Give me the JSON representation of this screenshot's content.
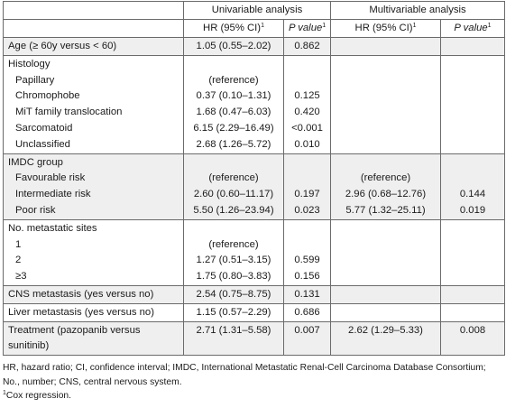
{
  "header": {
    "univariable": "Univariable analysis",
    "multivariable": "Multivariable analysis",
    "hr_ci": "HR (95% CI)",
    "p_value": "P value",
    "sup": "1"
  },
  "age": {
    "label": "Age (≥ 60y versus < 60)",
    "uni_hr": "1.05 (0.55–2.02)",
    "uni_p": "0.862"
  },
  "histology": {
    "label": "Histology",
    "rows": [
      {
        "label": "Papillary",
        "uni_hr": "(reference)",
        "uni_p": ""
      },
      {
        "label": "Chromophobe",
        "uni_hr": "0.37 (0.10–1.31)",
        "uni_p": "0.125"
      },
      {
        "label": "MiT family translocation",
        "uni_hr": "1.68 (0.47–6.03)",
        "uni_p": "0.420"
      },
      {
        "label": "Sarcomatoid",
        "uni_hr": "6.15 (2.29–16.49)",
        "uni_p": "<0.001"
      },
      {
        "label": "Unclassified",
        "uni_hr": "2.68 (1.26–5.72)",
        "uni_p": "0.010"
      }
    ]
  },
  "imdc": {
    "label": "IMDC group",
    "rows": [
      {
        "label": "Favourable risk",
        "uni_hr": "(reference)",
        "uni_p": "",
        "multi_hr": "(reference)",
        "multi_p": ""
      },
      {
        "label": "Intermediate risk",
        "uni_hr": "2.60 (0.60–11.17)",
        "uni_p": "0.197",
        "multi_hr": "2.96 (0.68–12.76)",
        "multi_p": "0.144"
      },
      {
        "label": "Poor risk",
        "uni_hr": "5.50 (1.26–23.94)",
        "uni_p": "0.023",
        "multi_hr": "5.77 (1.32–25.11)",
        "multi_p": "0.019"
      }
    ]
  },
  "sites": {
    "label": "No. metastatic sites",
    "rows": [
      {
        "label": "1",
        "uni_hr": "(reference)",
        "uni_p": ""
      },
      {
        "label": "2",
        "uni_hr": "1.27 (0.51–3.15)",
        "uni_p": "0.599"
      },
      {
        "label": "≥3",
        "uni_hr": "1.75 (0.80–3.83)",
        "uni_p": "0.156"
      }
    ]
  },
  "cns": {
    "label": "CNS metastasis (yes versus no)",
    "uni_hr": "2.54 (0.75–8.75)",
    "uni_p": "0.131"
  },
  "liver": {
    "label": "Liver metastasis (yes versus no)",
    "uni_hr": "1.15 (0.57–2.29)",
    "uni_p": "0.686"
  },
  "treatment": {
    "label": "Treatment (pazopanib versus sunitinib)",
    "uni_hr": "2.71 (1.31–5.58)",
    "uni_p": "0.007",
    "multi_hr": "2.62 (1.29–5.33)",
    "multi_p": "0.008"
  },
  "footnotes": {
    "abbrev": "HR, hazard ratio; CI, confidence interval; IMDC, International Metastatic Renal-Cell Carcinoma Database Consortium; No., number; CNS, central nervous system.",
    "sup": "1",
    "cox": "Cox regression."
  }
}
